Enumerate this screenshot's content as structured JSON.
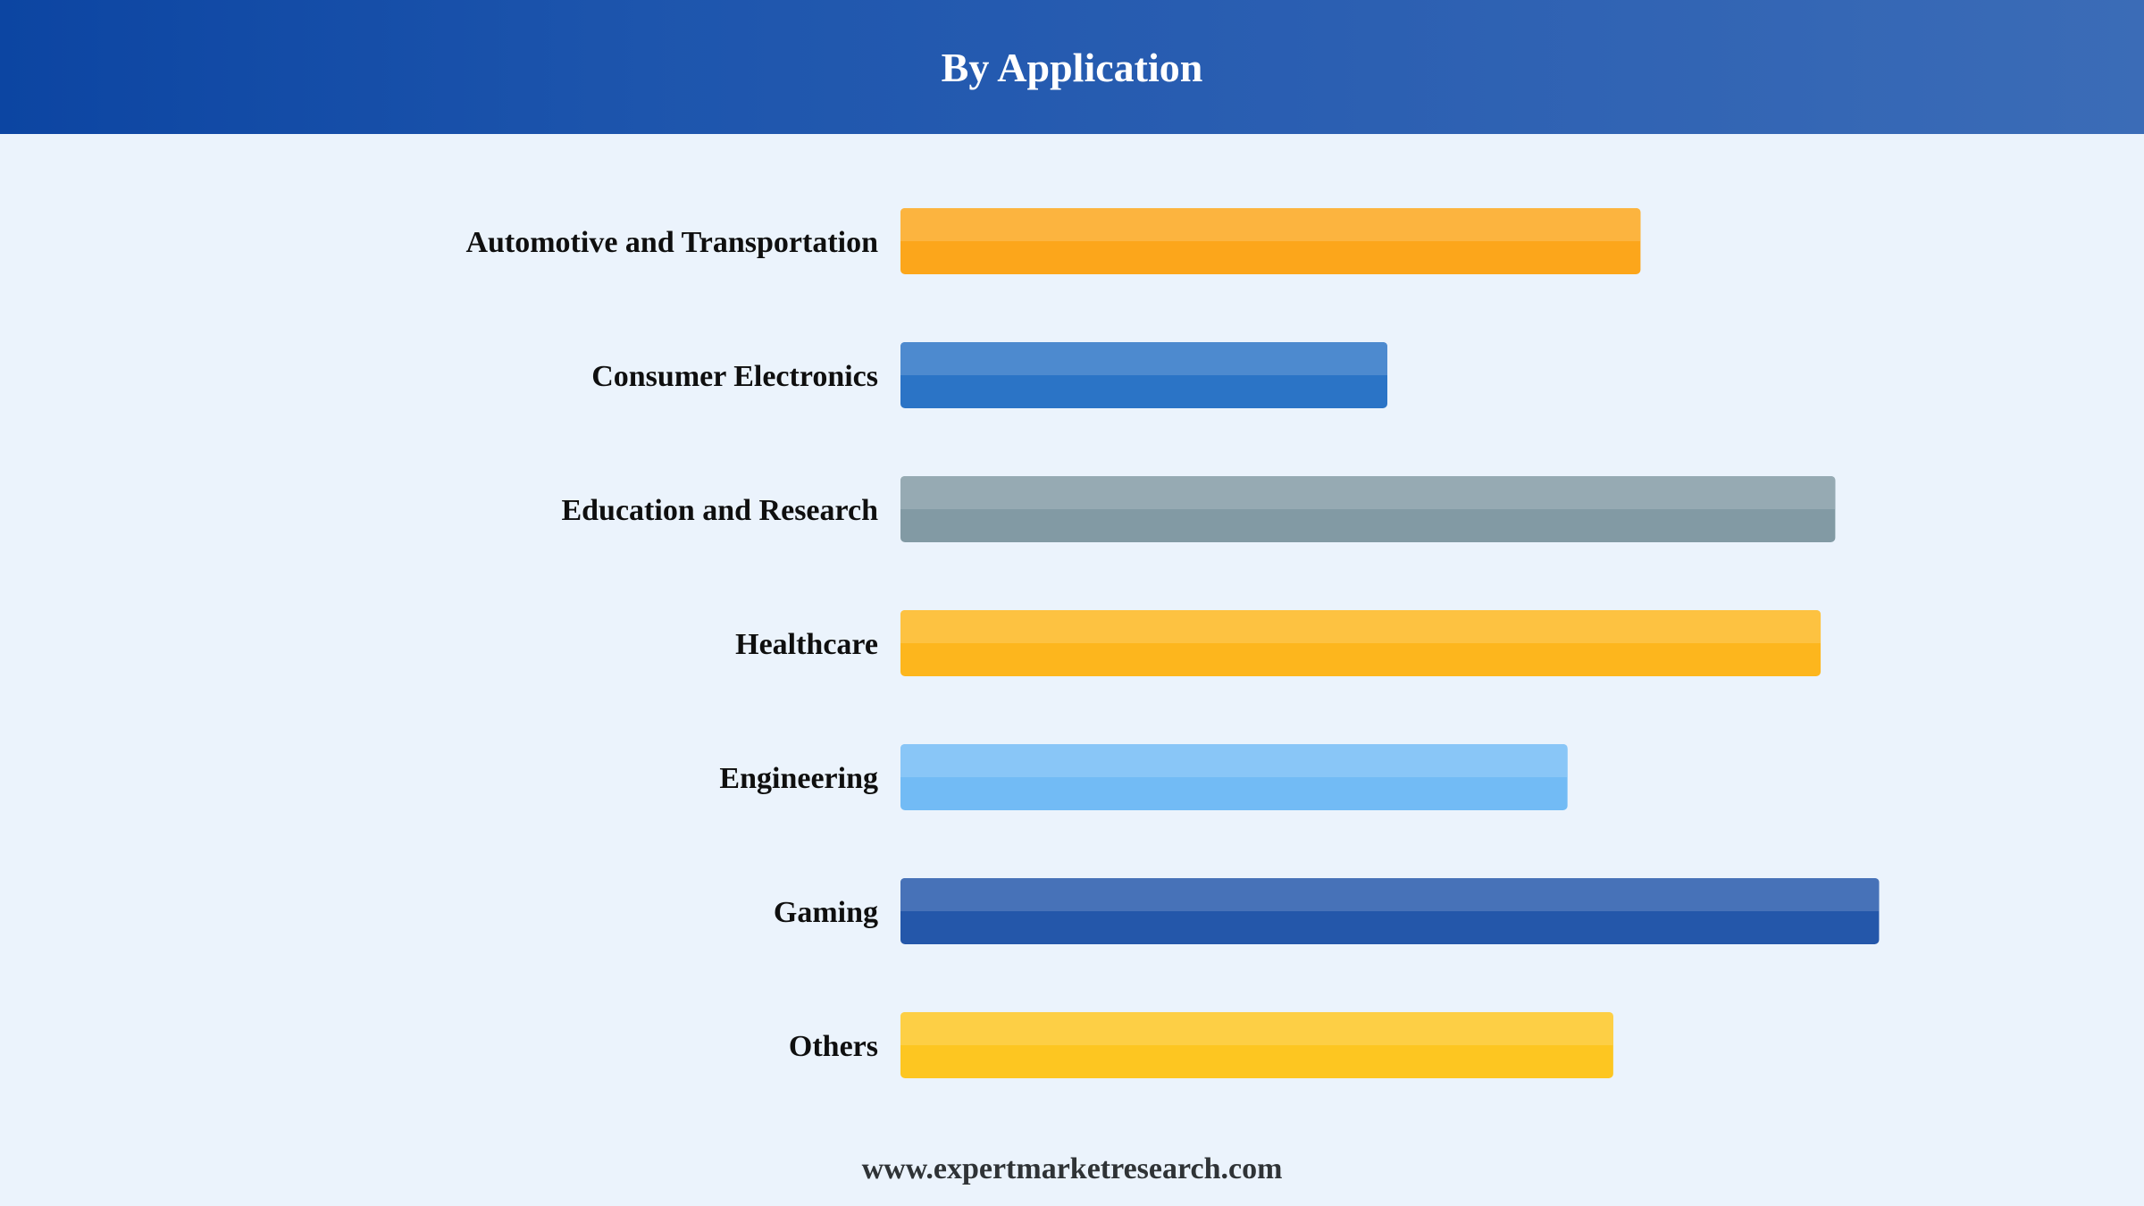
{
  "header": {
    "title": "By Application"
  },
  "footer": {
    "website": "www.expertmarketresearch.com"
  },
  "chart_data": {
    "type": "bar",
    "orientation": "horizontal",
    "categories": [
      "Automotive and Transportation",
      "Consumer Electronics",
      "Education and Research",
      "Healthcare",
      "Engineering",
      "Gaming",
      "Others"
    ],
    "values": [
      76,
      50,
      96,
      94.5,
      68.5,
      100.5,
      73.2
    ],
    "xlim": [
      0,
      110
    ],
    "grid": false,
    "legend": "none",
    "title": "By Application",
    "colors": [
      "#fca61b",
      "#2b74c6",
      "#829aa4",
      "#fdb61d",
      "#72bbf5",
      "#2457aa",
      "#fdc621"
    ]
  }
}
